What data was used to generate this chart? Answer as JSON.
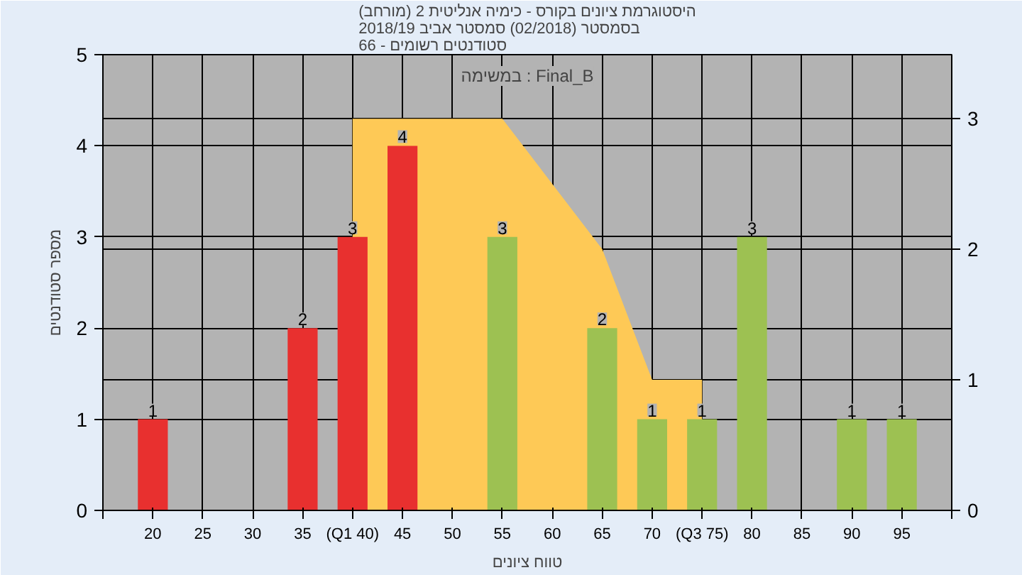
{
  "chart_data": {
    "type": "bar",
    "title": "היסטוגרמת ציונים בקורס - כימיה אנליטית 2 (מורחב)\nבסמסטר (02/2018) סמסטר אביב 2018/19\nסטודנטים רשומים - 66",
    "xlabel": "טווח ציונים",
    "ylabel": "מספר סטודנטים",
    "annotations": [
      "במשימה : Final_B"
    ],
    "series": [
      {
        "type": "area",
        "axis": "y2",
        "color": "#fec956",
        "x": [
          40,
          55,
          65,
          70,
          75
        ],
        "values": [
          3,
          3,
          2,
          1,
          1
        ]
      },
      {
        "x": [
          20,
          35,
          40,
          45,
          55,
          65,
          70,
          75,
          80,
          90,
          95
        ],
        "values": [
          1,
          2,
          3,
          4,
          3,
          2,
          1,
          1,
          3,
          1,
          1
        ],
        "colors": [
          "#e8302f",
          "#e8302f",
          "#e8302f",
          "#e8302f",
          "#9dc152",
          "#9dc152",
          "#9dc152",
          "#9dc152",
          "#9dc152",
          "#9dc152",
          "#9dc152"
        ],
        "data_labels": true
      }
    ],
    "grid": true,
    "xlim": [
      15,
      100
    ],
    "xticks": [
      {
        "value": 15,
        "label": null
      },
      20,
      25,
      30,
      35,
      {
        "value": 40,
        "label": "(Q1 40)"
      },
      45,
      50,
      55,
      60,
      65,
      70,
      {
        "value": 75,
        "label": "(Q3 75)"
      },
      80,
      85,
      90,
      95,
      {
        "value": 100,
        "label": null
      }
    ],
    "ylim": [
      0,
      5
    ],
    "yticks": [
      0,
      1,
      2,
      3,
      4,
      5
    ],
    "y2lim": [
      0,
      3.49
    ],
    "y2ticks": [
      0,
      1,
      2,
      3
    ]
  }
}
